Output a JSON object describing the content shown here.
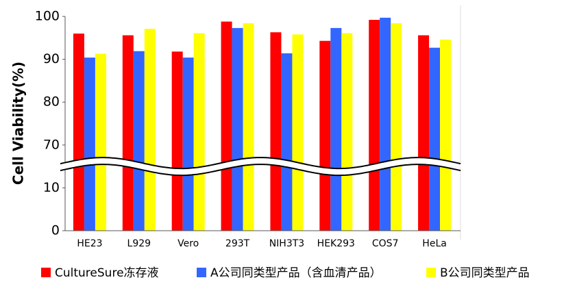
{
  "chart_data": {
    "type": "bar",
    "y_label": "Cell Viability(%)",
    "categories": [
      "HE23",
      "L929",
      "Vero",
      "293T",
      "NIH3T3",
      "HEK293",
      "COS7",
      "HeLa"
    ],
    "series": [
      {
        "name": "CultureSure冻存液",
        "color": "#ff0000",
        "values": [
          96,
          95.6,
          91.8,
          98.8,
          96.3,
          94.3,
          99.2,
          95.6
        ]
      },
      {
        "name": "A公司同类型产品（含血清产品）",
        "color": "#3366ff",
        "values": [
          90.4,
          91.9,
          90.4,
          97.3,
          91.4,
          97.3,
          99.7,
          92.7
        ]
      },
      {
        "name": "B公司同类型产品",
        "color": "#ffff00",
        "values": [
          91.3,
          97.1,
          96.1,
          98.4,
          95.8,
          96.1,
          98.4,
          94.6
        ]
      }
    ],
    "ylim": [
      0,
      100
    ],
    "yticks": [
      0,
      10,
      70,
      80,
      90,
      100
    ],
    "y_break": [
      10,
      70
    ]
  }
}
